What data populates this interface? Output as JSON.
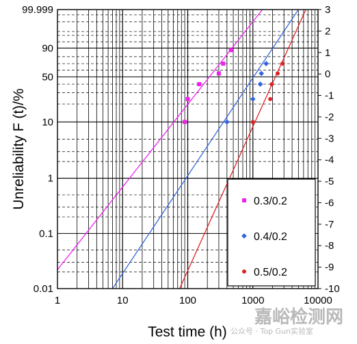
{
  "chart_data": {
    "type": "scatter",
    "title": "",
    "xlabel": "Test time (h)",
    "ylabel": "Unreliability F (t)/%",
    "x_scale": "log",
    "y_scale": "weibull",
    "xlim": [
      1,
      10000
    ],
    "ylim": [
      0.01,
      99.999
    ],
    "x_ticks": [
      "1",
      "10",
      "100",
      "1000",
      "10000"
    ],
    "y_left_ticks": [
      {
        "value": 99.999,
        "label": "99.999"
      },
      {
        "value": 90,
        "label": "90"
      },
      {
        "value": 50,
        "label": "50"
      },
      {
        "value": 10,
        "label": "10"
      },
      {
        "value": 1,
        "label": "1"
      },
      {
        "value": 0.1,
        "label": "0.1"
      },
      {
        "value": 0.01,
        "label": "0.01"
      }
    ],
    "y_right_ticks": [
      "3",
      "2",
      "1",
      "0",
      "-1",
      "-2",
      "-3",
      "-4",
      "-5",
      "-6",
      "-7",
      "-8",
      "-9",
      "-10"
    ],
    "y_right_range": [
      -10,
      3
    ],
    "legend_position": "bottom-right",
    "grid": true,
    "series": [
      {
        "name": "0.3/0.2",
        "color": "#ee22ee",
        "marker": "square",
        "points": [
          [
            90,
            10
          ],
          [
            100,
            24
          ],
          [
            150,
            40
          ],
          [
            300,
            55
          ],
          [
            350,
            70
          ],
          [
            460,
            88
          ]
        ],
        "fit_line": [
          [
            1,
            0.022
          ],
          [
            1400,
            99.999
          ]
        ]
      },
      {
        "name": "0.4/0.2",
        "color": "#3366dd",
        "marker": "diamond",
        "points": [
          [
            400,
            10
          ],
          [
            1000,
            24
          ],
          [
            1300,
            40
          ],
          [
            1350,
            55
          ],
          [
            1600,
            70
          ]
        ],
        "fit_line": [
          [
            7,
            0.01
          ],
          [
            5000,
            99.999
          ]
        ]
      },
      {
        "name": "0.5/0.2",
        "color": "#dd2222",
        "marker": "circle",
        "points": [
          [
            1000,
            10
          ],
          [
            1850,
            24
          ],
          [
            1950,
            40
          ],
          [
            2400,
            55
          ],
          [
            2850,
            70
          ]
        ],
        "fit_line": [
          [
            75,
            0.01
          ],
          [
            6500,
            99.999
          ]
        ]
      }
    ]
  },
  "watermark": {
    "line1": "嘉峪检测网",
    "line2": "公众号 · Top Gun实验室"
  }
}
